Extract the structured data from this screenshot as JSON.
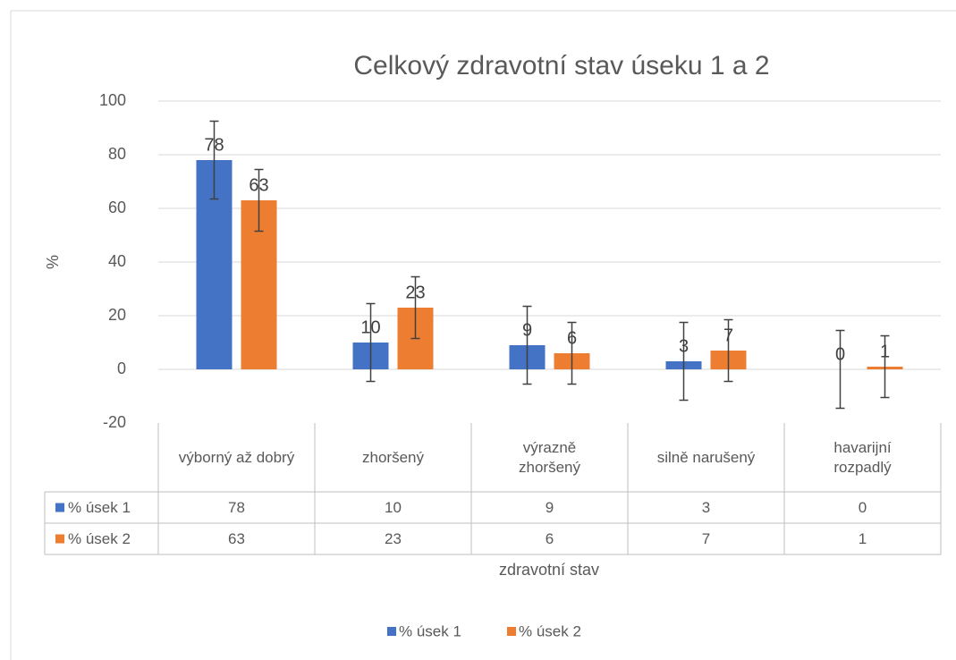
{
  "chart_data": {
    "type": "bar",
    "title": "Celkový zdravotní stav úseku 1 a 2",
    "y_label": "%",
    "x_label": "zdravotní stav",
    "categories": [
      "výborný až dobrý",
      "zhoršený",
      "výrazně zhoršený",
      "silně narušený",
      "havarijní rozpadlý"
    ],
    "series": [
      {
        "name": "% úsek 1",
        "color": "#4472c4",
        "values": [
          78,
          10,
          9,
          3,
          0
        ],
        "error": 14.5
      },
      {
        "name": "% úsek 2",
        "color": "#ed7d31",
        "values": [
          63,
          23,
          6,
          7,
          1
        ],
        "error": 11.5
      }
    ],
    "ylim": [
      -20,
      100
    ],
    "yticks": [
      -20,
      0,
      20,
      40,
      60,
      80,
      100
    ],
    "grid": true,
    "legend": "bottom",
    "data_table": true
  }
}
